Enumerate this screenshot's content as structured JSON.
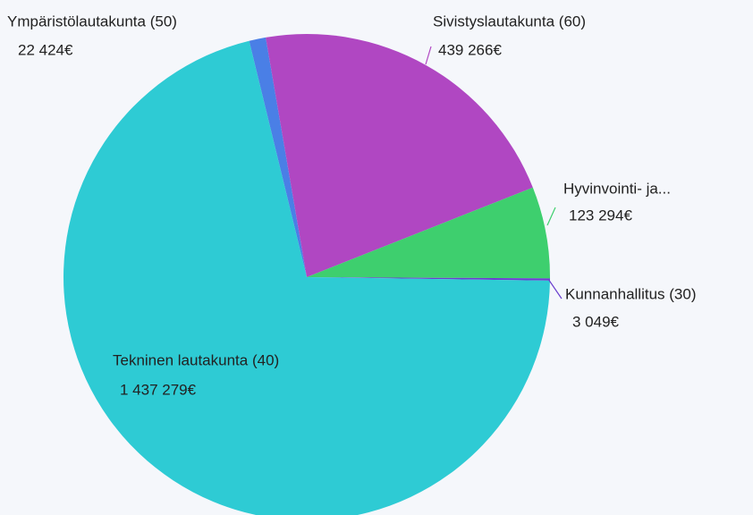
{
  "chart_data": {
    "type": "pie",
    "categories": [
      "Ympäristölautakunta (50)",
      "Sivistyslautakunta (60)",
      "Hyvinvointi- ja...",
      "Kunnanhallitus (30)",
      "Tekninen lautakunta (40)"
    ],
    "values": [
      22424,
      439266,
      123294,
      3049,
      1437279
    ],
    "value_labels": [
      "22 424€",
      "439 266€",
      "123 294€",
      "3 049€",
      "1 437 279€"
    ],
    "colors": [
      "#4a7fe6",
      "#b047c2",
      "#3ecf6e",
      "#6b3fcf",
      "#2ecbd4"
    ]
  }
}
